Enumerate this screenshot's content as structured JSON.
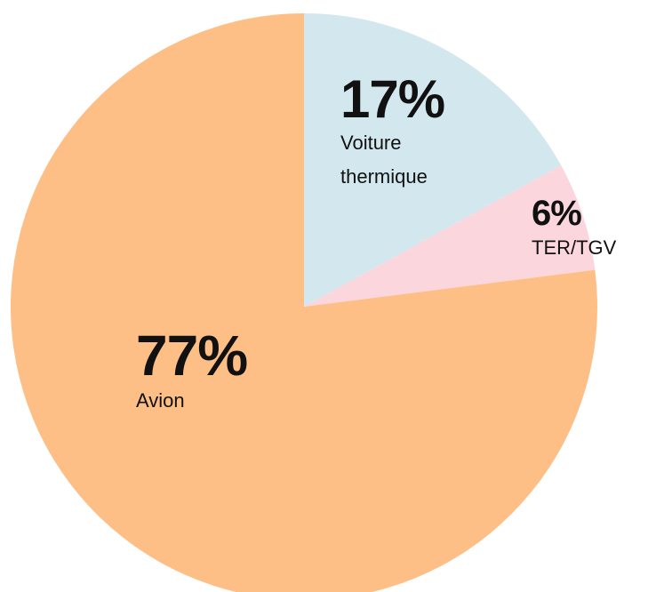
{
  "chart_data": {
    "type": "pie",
    "categories": [
      "Voiture thermique",
      "TER/TGV",
      "Avion"
    ],
    "values": [
      17,
      6,
      77
    ],
    "value_labels": [
      "17%",
      "6%",
      "77%"
    ],
    "colors": [
      "#d3e8ee",
      "#fbd6dd",
      "#fdbf86"
    ]
  }
}
